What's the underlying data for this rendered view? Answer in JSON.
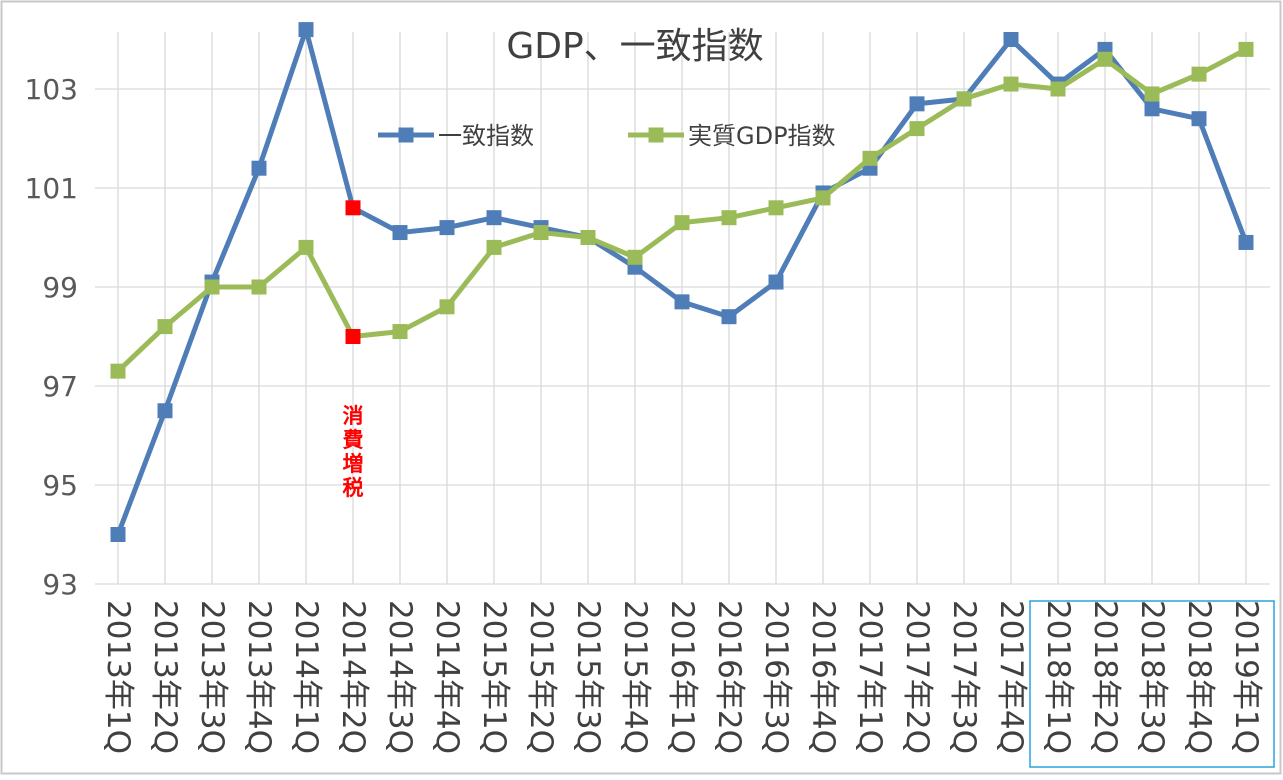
{
  "chart_data": {
    "type": "line",
    "title": "GDP、一致指数",
    "xlabel": "",
    "ylabel": "",
    "ylim": [
      93,
      104.2
    ],
    "yticks": [
      "93",
      "95",
      "97",
      "99",
      "101",
      "103"
    ],
    "ytick_values": [
      93,
      95,
      97,
      99,
      101,
      103
    ],
    "grid": "vertical lines at categories, horizontal lines at y ticks",
    "legend_position": "top-left inside plot",
    "categories": [
      "2013年1Q",
      "2013年2Q",
      "2013年3Q",
      "2013年4Q",
      "2014年1Q",
      "2014年2Q",
      "2014年3Q",
      "2014年4Q",
      "2015年1Q",
      "2015年2Q",
      "2015年3Q",
      "2015年4Q",
      "2016年1Q",
      "2016年2Q",
      "2016年3Q",
      "2016年4Q",
      "2017年1Q",
      "2017年2Q",
      "2017年3Q",
      "2017年4Q",
      "2018年1Q",
      "2018年2Q",
      "2018年3Q",
      "2018年4Q",
      "2019年1Q"
    ],
    "series": [
      {
        "name": "一致指数",
        "color": "#4f7db8",
        "values": [
          94.0,
          96.5,
          99.1,
          101.4,
          104.2,
          100.6,
          100.1,
          100.2,
          100.4,
          100.2,
          100.0,
          99.4,
          98.7,
          98.4,
          99.1,
          100.9,
          101.4,
          102.7,
          102.8,
          104.0,
          103.1,
          103.8,
          102.6,
          102.4,
          99.9
        ]
      },
      {
        "name": "実質GDP指数",
        "color": "#9bbb59",
        "values": [
          97.3,
          98.2,
          99.0,
          99.0,
          99.8,
          98.0,
          98.1,
          98.6,
          99.8,
          100.1,
          100.0,
          99.6,
          100.3,
          100.4,
          100.6,
          100.8,
          101.6,
          102.2,
          102.8,
          103.1,
          103.0,
          103.6,
          102.9,
          103.3,
          103.8
        ]
      }
    ],
    "highlight": {
      "category": "2014年2Q",
      "marker_color": "#ff0000",
      "annotation": "消費増税",
      "annotation_color": "#ff0000"
    },
    "highlight_box_color": "#29a6dc",
    "highlight_box_categories": [
      "2018年1Q",
      "2019年1Q"
    ]
  },
  "colors": {
    "frame_border": "#c8c8c8",
    "grid": "#d9d9d9",
    "axis_text": "#595959",
    "category_text": "#404040"
  }
}
